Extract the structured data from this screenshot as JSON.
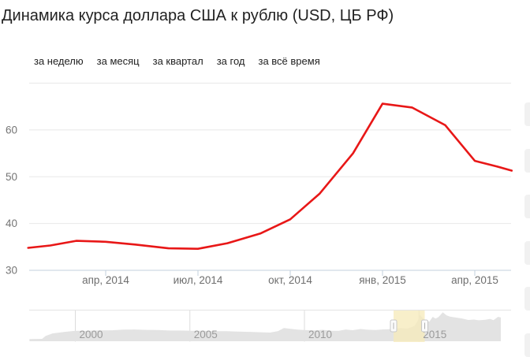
{
  "title": "Динамика курса доллара США к рублю (USD, ЦБ РФ)",
  "tabs": [
    {
      "slug": "week",
      "label": "за неделю"
    },
    {
      "slug": "month",
      "label": "за месяц"
    },
    {
      "slug": "quarter",
      "label": "за квартал"
    },
    {
      "slug": "year",
      "label": "за год"
    },
    {
      "slug": "alltime",
      "label": "за всё время"
    }
  ],
  "colors": {
    "line": "#e81717",
    "grid": "#e8e8e8",
    "axis": "#c3d1de",
    "axis_text": "#757575",
    "xaxis_text": "#6e6e6e",
    "overview_fill": "#e3e3e3",
    "overview_grid": "#dcdcdc",
    "overview_border": "#e4e4e4",
    "overview_text": "#9b9b9b",
    "selection_fill": "rgba(246,235,187,0.78)",
    "handle_fill": "#fbfbfb",
    "handle_stroke": "#c8c8c8",
    "handle_grip": "#b0b0b0"
  },
  "chart_data": [
    {
      "id": "main-line",
      "type": "line",
      "title": "Динамика курса доллара США к рублю (USD, ЦБ РФ)",
      "xlabel": "",
      "ylabel": "",
      "ylim": [
        30,
        70
      ],
      "xlim": [
        2014.04,
        2015.35
      ],
      "grid": true,
      "ytick_labels": [
        "30",
        "40",
        "50",
        "60"
      ],
      "yticks": [
        30,
        40,
        50,
        60
      ],
      "ygridlines": [
        40,
        50,
        60,
        70
      ],
      "xticks": [
        {
          "t": 2014.25,
          "label": "апр, 2014"
        },
        {
          "t": 2014.5,
          "label": "июл, 2014"
        },
        {
          "t": 2014.75,
          "label": "окт, 2014"
        },
        {
          "t": 2015.0,
          "label": "янв, 2015"
        },
        {
          "t": 2015.25,
          "label": "апр, 2015"
        }
      ],
      "series": [
        {
          "color": "#e81717",
          "points": [
            [
              2014.04,
              34.8
            ],
            [
              2014.1,
              35.3
            ],
            [
              2014.17,
              36.3
            ],
            [
              2014.25,
              36.1
            ],
            [
              2014.33,
              35.5
            ],
            [
              2014.42,
              34.7
            ],
            [
              2014.5,
              34.6
            ],
            [
              2014.58,
              35.8
            ],
            [
              2014.67,
              37.9
            ],
            [
              2014.75,
              40.9
            ],
            [
              2014.83,
              46.4
            ],
            [
              2014.92,
              55.0
            ],
            [
              2015.0,
              65.6
            ],
            [
              2015.08,
              64.8
            ],
            [
              2015.17,
              61.0
            ],
            [
              2015.25,
              53.4
            ],
            [
              2015.31,
              52.2
            ],
            [
              2015.35,
              51.3
            ]
          ]
        }
      ]
    },
    {
      "id": "overview-area",
      "type": "area",
      "title": "",
      "xlabel": "",
      "ylabel": "",
      "xlim": [
        1998.0,
        2018.57
      ],
      "ylim": [
        0,
        83
      ],
      "xticks": [
        {
          "t": 2000,
          "label": "2000"
        },
        {
          "t": 2005,
          "label": "2005"
        },
        {
          "t": 2010,
          "label": "2010"
        },
        {
          "t": 2015,
          "label": "2015"
        }
      ],
      "selection": {
        "from": 2013.89,
        "to": 2015.25
      },
      "points": [
        [
          1998.0,
          6.0
        ],
        [
          1998.55,
          6.3
        ],
        [
          1998.7,
          14.0
        ],
        [
          1999.0,
          21.0
        ],
        [
          1999.5,
          25.0
        ],
        [
          2000.0,
          28.0
        ],
        [
          2000.5,
          28.2
        ],
        [
          2001.0,
          29.2
        ],
        [
          2001.6,
          29.6
        ],
        [
          2002.1,
          31.2
        ],
        [
          2002.6,
          31.6
        ],
        [
          2003.1,
          30.7
        ],
        [
          2003.6,
          30.3
        ],
        [
          2004.1,
          28.9
        ],
        [
          2004.6,
          29.0
        ],
        [
          2005.1,
          28.2
        ],
        [
          2005.6,
          28.6
        ],
        [
          2006.1,
          27.2
        ],
        [
          2006.6,
          27.0
        ],
        [
          2007.1,
          26.1
        ],
        [
          2007.6,
          25.4
        ],
        [
          2008.1,
          24.3
        ],
        [
          2008.5,
          23.4
        ],
        [
          2008.85,
          27.5
        ],
        [
          2009.1,
          35.8
        ],
        [
          2009.4,
          33.6
        ],
        [
          2009.7,
          31.3
        ],
        [
          2010.1,
          29.9
        ],
        [
          2010.45,
          29.2
        ],
        [
          2010.8,
          30.8
        ],
        [
          2011.2,
          28.2
        ],
        [
          2011.5,
          28.0
        ],
        [
          2011.8,
          31.6
        ],
        [
          2012.1,
          29.8
        ],
        [
          2012.45,
          32.9
        ],
        [
          2012.75,
          31.1
        ],
        [
          2013.1,
          30.3
        ],
        [
          2013.45,
          31.9
        ],
        [
          2013.8,
          32.8
        ],
        [
          2014.2,
          35.6
        ],
        [
          2014.5,
          34.3
        ],
        [
          2014.8,
          41.0
        ],
        [
          2014.95,
          56.0
        ],
        [
          2015.04,
          72.0
        ],
        [
          2015.16,
          62.5
        ],
        [
          2015.3,
          56.5
        ],
        [
          2015.45,
          52.5
        ],
        [
          2015.6,
          66.0
        ],
        [
          2015.72,
          61.0
        ],
        [
          2015.85,
          65.0
        ],
        [
          2016.04,
          78.0
        ],
        [
          2016.2,
          70.0
        ],
        [
          2016.35,
          66.5
        ],
        [
          2016.6,
          64.0
        ],
        [
          2016.9,
          61.0
        ],
        [
          2017.15,
          57.5
        ],
        [
          2017.4,
          58.5
        ],
        [
          2017.6,
          56.5
        ],
        [
          2017.9,
          58.0
        ],
        [
          2018.1,
          60.5
        ],
        [
          2018.25,
          57.0
        ],
        [
          2018.45,
          66.0
        ],
        [
          2018.57,
          64.0
        ]
      ]
    }
  ]
}
